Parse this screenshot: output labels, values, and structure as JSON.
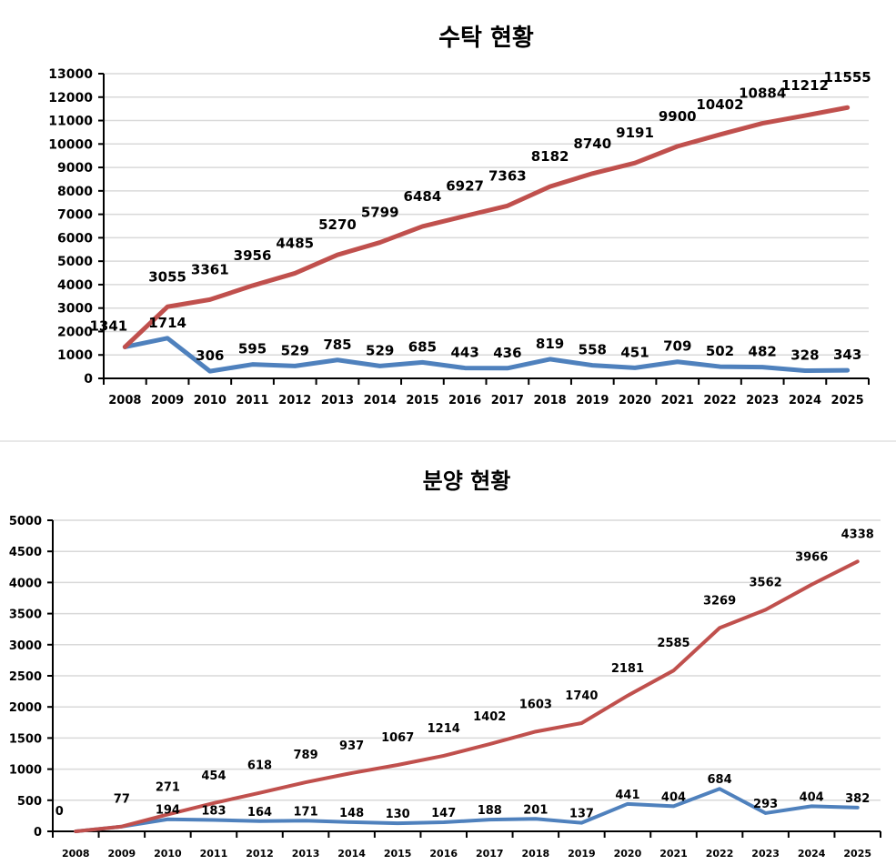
{
  "colors": {
    "red": "#c0504d",
    "blue": "#4f81bd",
    "grid": "#d9d9d9"
  },
  "chart_data": [
    {
      "type": "line",
      "title": "수탁 현황",
      "categories": [
        "2008",
        "2009",
        "2010",
        "2011",
        "2012",
        "2013",
        "2014",
        "2015",
        "2016",
        "2017",
        "2018",
        "2019",
        "2020",
        "2021",
        "2022",
        "2023",
        "2024",
        "2025"
      ],
      "ylim": [
        0,
        13000
      ],
      "ystep": 1000,
      "grid": true,
      "series": [
        {
          "name": "red",
          "color": "#c0504d",
          "values": [
            1341,
            3055,
            3361,
            3956,
            4485,
            5270,
            5799,
            6484,
            6927,
            7363,
            8182,
            8740,
            9191,
            9900,
            10402,
            10884,
            11212,
            11555
          ]
        },
        {
          "name": "blue",
          "color": "#4f81bd",
          "values": [
            1341,
            1714,
            306,
            595,
            529,
            785,
            529,
            685,
            443,
            436,
            819,
            558,
            451,
            709,
            502,
            482,
            328,
            343
          ]
        }
      ]
    },
    {
      "type": "line",
      "title": "분양 현황",
      "categories": [
        "2008",
        "2009",
        "2010",
        "2011",
        "2012",
        "2013",
        "2014",
        "2015",
        "2016",
        "2017",
        "2018",
        "2019",
        "2020",
        "2021",
        "2022",
        "2023",
        "2024",
        "2025"
      ],
      "ylim": [
        0,
        5000
      ],
      "ystep": 500,
      "grid": true,
      "series": [
        {
          "name": "red",
          "color": "#c0504d",
          "values": [
            0,
            77,
            271,
            454,
            618,
            789,
            937,
            1067,
            1214,
            1402,
            1603,
            1740,
            2181,
            2585,
            3269,
            3562,
            3966,
            4338
          ]
        },
        {
          "name": "blue",
          "color": "#4f81bd",
          "values": [
            0,
            77,
            194,
            183,
            164,
            171,
            148,
            130,
            147,
            188,
            201,
            137,
            441,
            404,
            684,
            293,
            404,
            382
          ]
        }
      ]
    }
  ]
}
